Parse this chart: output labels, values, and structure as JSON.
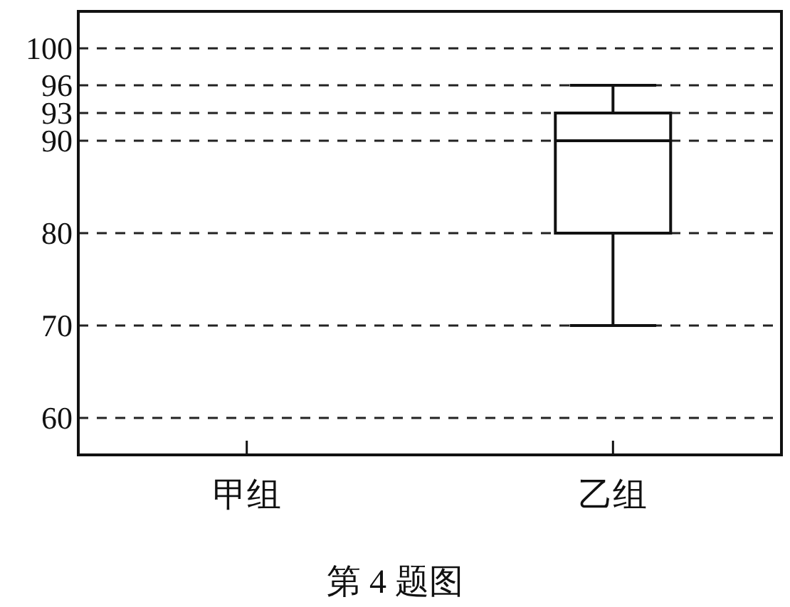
{
  "chart_data": {
    "type": "box",
    "categories": [
      "甲组",
      "乙组"
    ],
    "boxes": [
      null,
      {
        "low": 70,
        "q1": 80,
        "median": 90,
        "q3": 93,
        "high": 96
      }
    ],
    "color": "#111111",
    "ylim": [
      56,
      104
    ],
    "yticks": [
      60,
      70,
      80,
      90,
      93,
      96,
      100
    ],
    "grid": "y",
    "annotations": [
      "第 4 题图"
    ]
  }
}
